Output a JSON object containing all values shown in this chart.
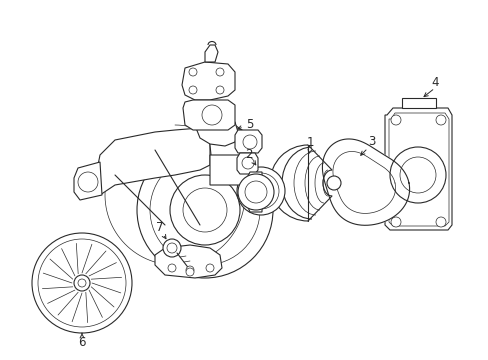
{
  "bg_color": "#ffffff",
  "line_color": "#2a2a2a",
  "lw": 0.8,
  "lw_thin": 0.5,
  "figsize": [
    4.89,
    3.6
  ],
  "dpi": 100,
  "label_fontsize": 8.5,
  "xlim": [
    0,
    489
  ],
  "ylim": [
    0,
    360
  ]
}
